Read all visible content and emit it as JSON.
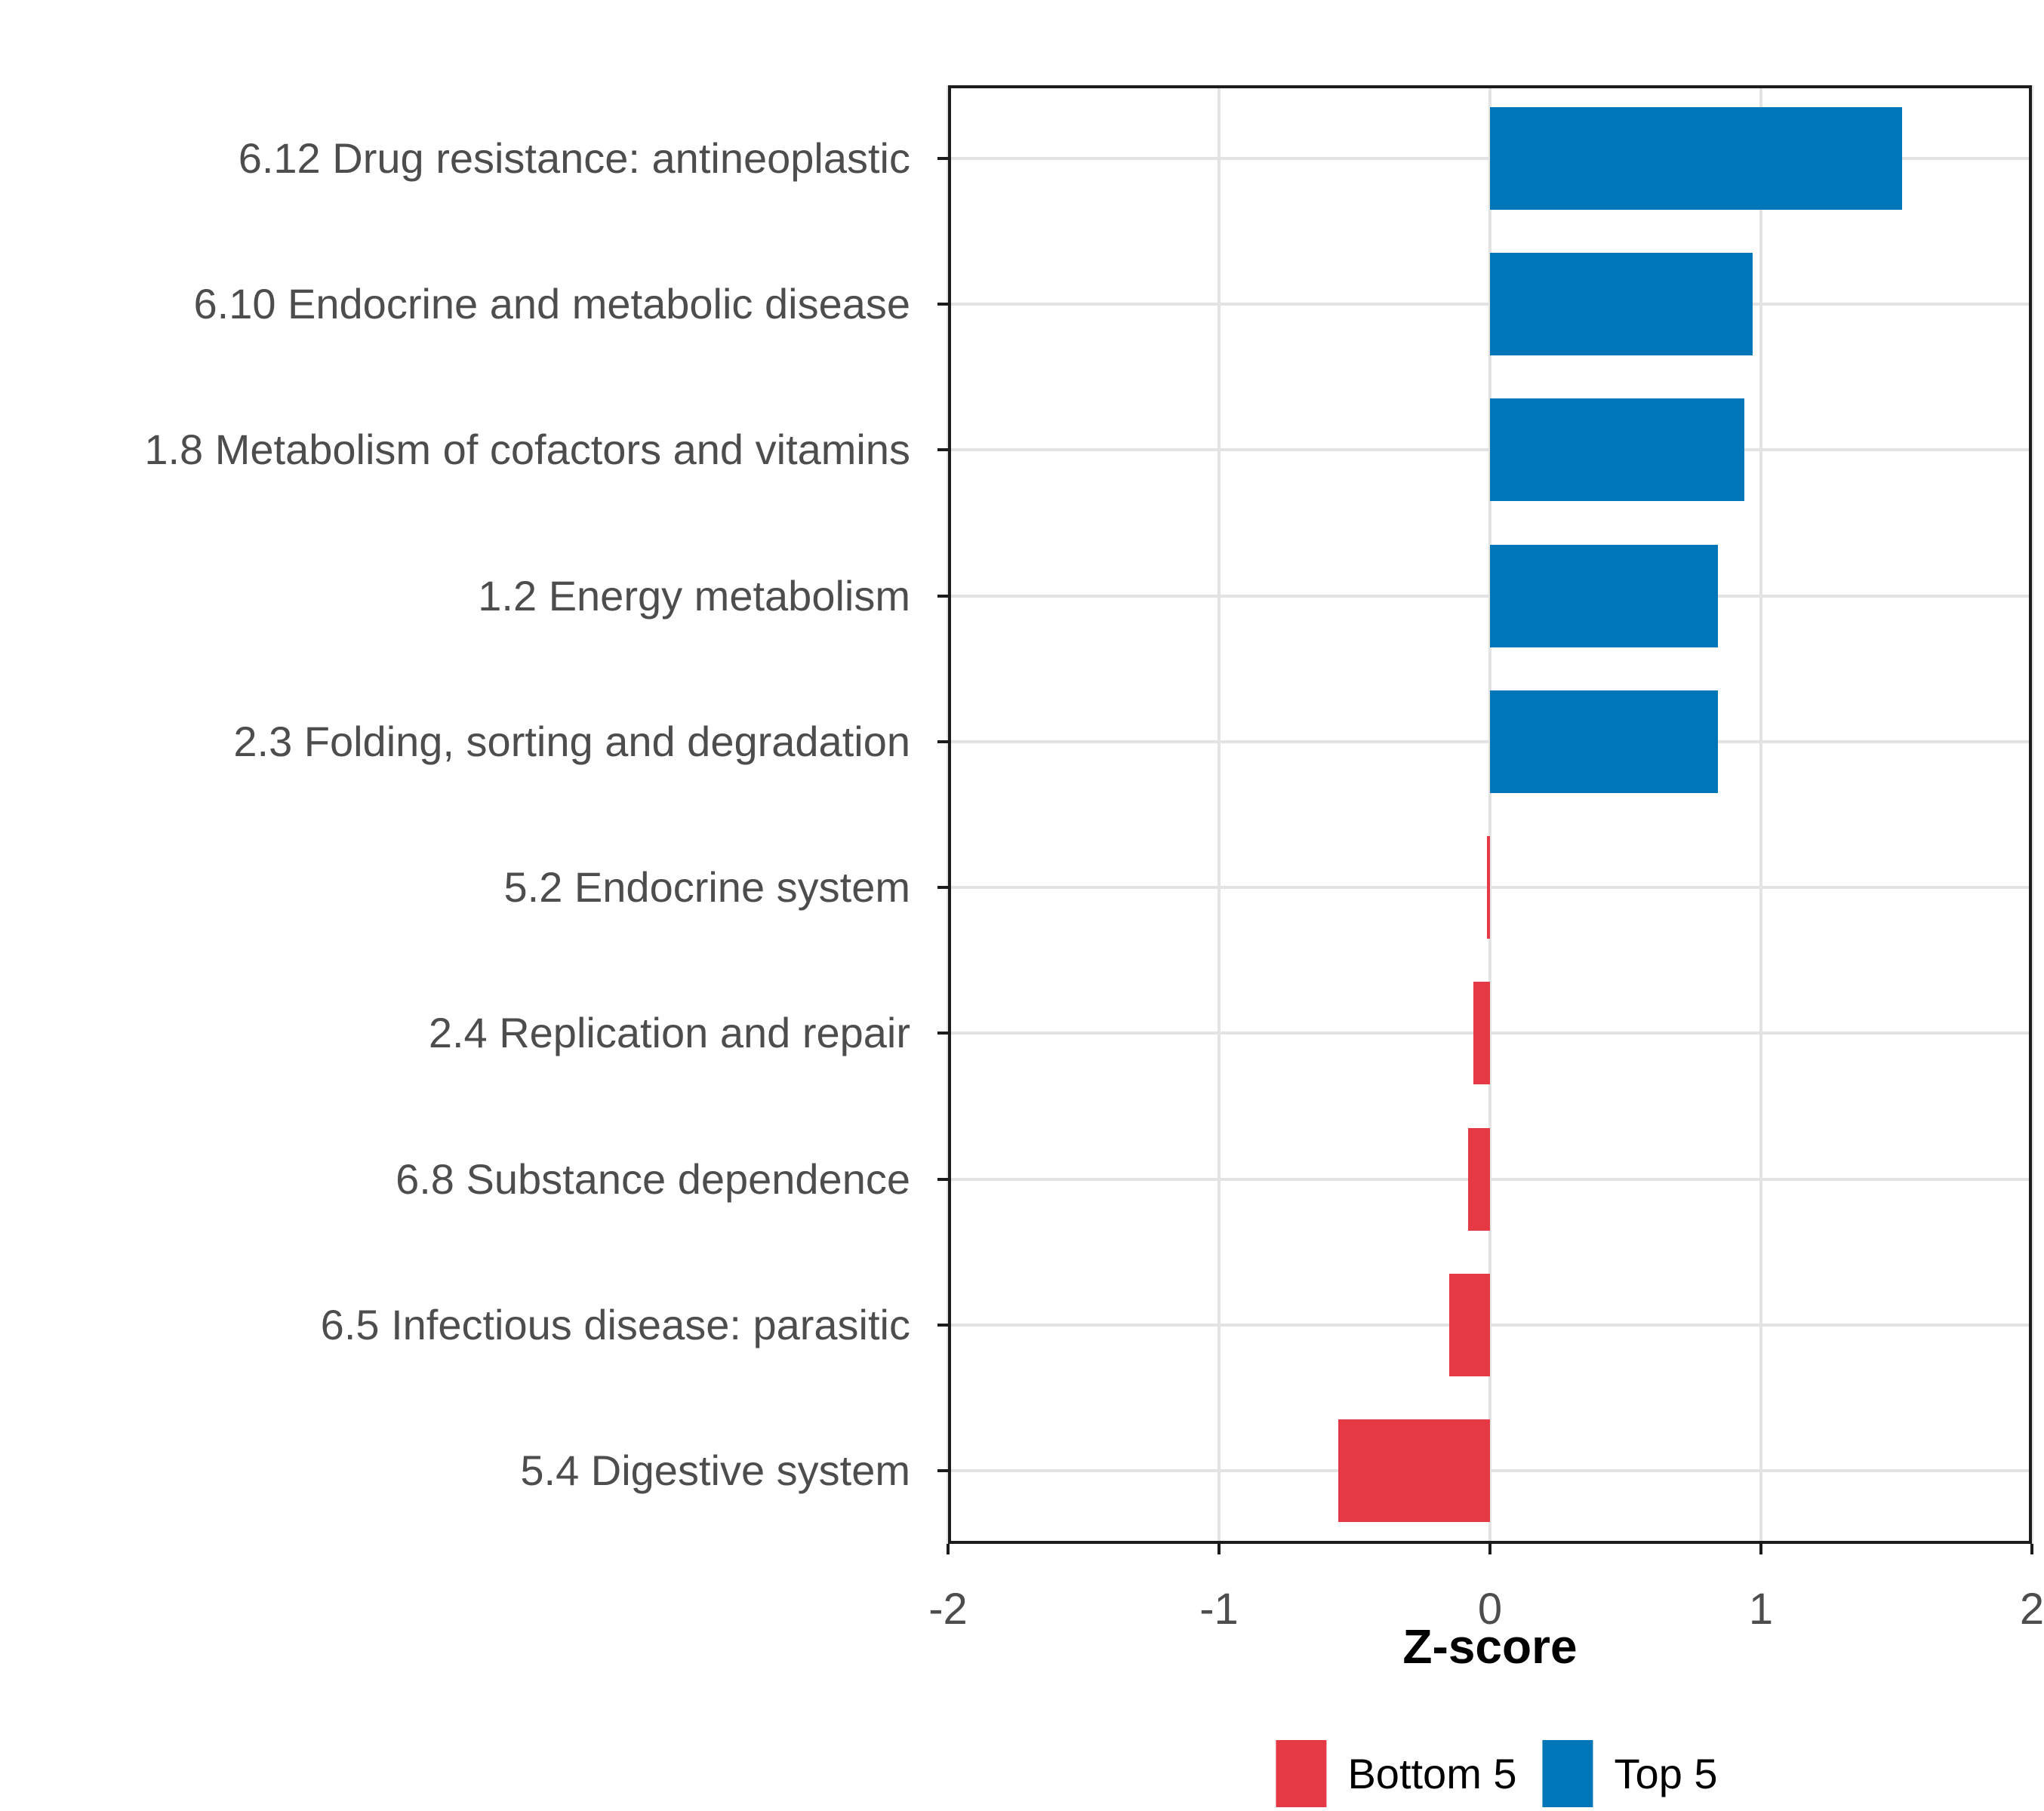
{
  "chart_data": {
    "type": "bar",
    "orientation": "horizontal",
    "title": "",
    "xlabel": "Z-score",
    "ylabel": "",
    "xlim": [
      -2,
      2
    ],
    "xticks": [
      -2,
      -1,
      0,
      1,
      2
    ],
    "grid": "major-vertical-and-category-horizontal",
    "legend_position": "bottom-center",
    "background": "#ffffff",
    "gridline_color": "#e3e3e3",
    "axis_text_color": "#4d4d4d",
    "panel_border_color": "#1c1c1c",
    "categories": [
      "6.12 Drug resistance: antineoplastic",
      "6.10 Endocrine and metabolic disease",
      "1.8 Metabolism of cofactors and vitamins",
      "1.2 Energy metabolism",
      "2.3 Folding, sorting and degradation",
      "5.2 Endocrine system",
      "2.4 Replication and repair",
      "6.8 Substance dependence",
      "6.5 Infectious disease: parasitic",
      "5.4 Digestive system"
    ],
    "values": [
      1.52,
      0.97,
      0.94,
      0.84,
      0.84,
      -0.01,
      -0.06,
      -0.08,
      -0.15,
      -0.56
    ],
    "groups": [
      "Top 5",
      "Top 5",
      "Top 5",
      "Top 5",
      "Top 5",
      "Bottom 5",
      "Bottom 5",
      "Bottom 5",
      "Bottom 5",
      "Bottom 5"
    ],
    "legend": [
      {
        "label": "Bottom 5",
        "color": "#E63946"
      },
      {
        "label": "Top 5",
        "color": "#0076B8"
      }
    ]
  }
}
